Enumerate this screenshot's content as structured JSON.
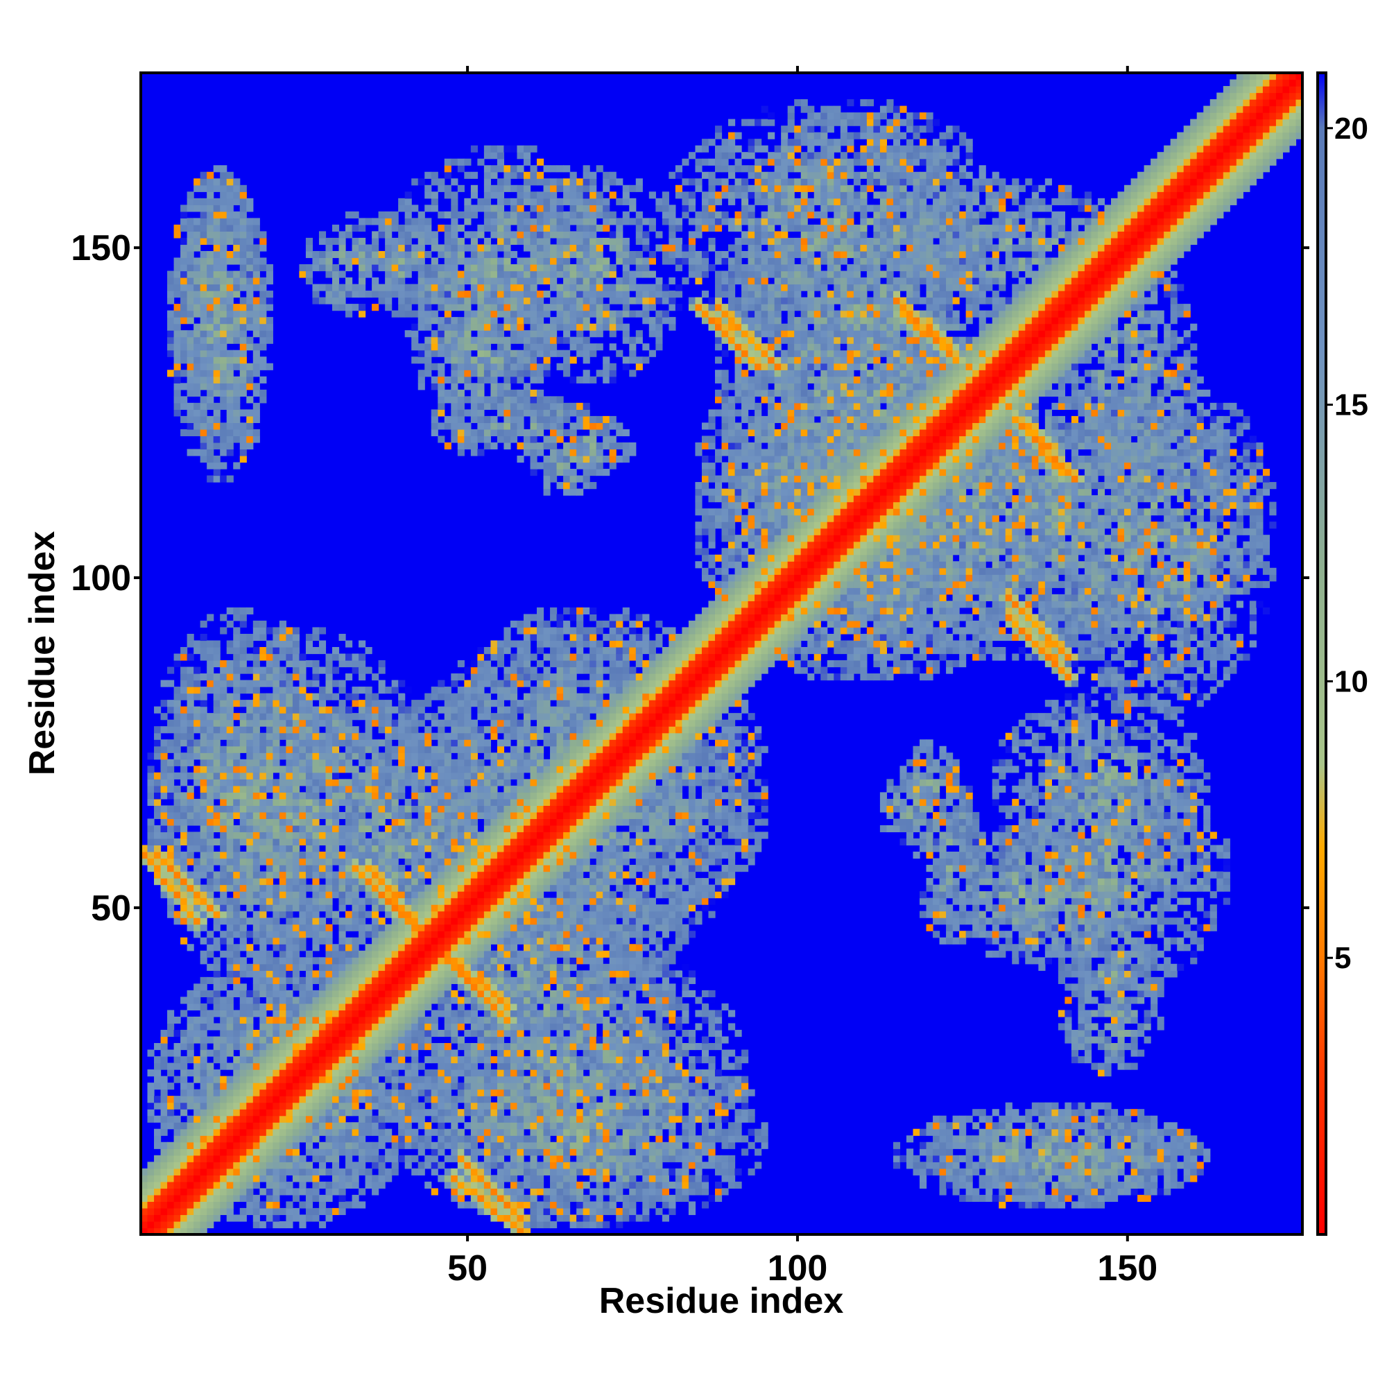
{
  "chart_data": {
    "type": "heatmap",
    "title": "",
    "xlabel": "Residue index",
    "ylabel": "Residue index",
    "n_residues": 176,
    "xlim": [
      1,
      176
    ],
    "ylim": [
      1,
      176
    ],
    "x_ticks": [
      50,
      100,
      150
    ],
    "y_ticks": [
      50,
      100,
      150
    ],
    "colorbar": {
      "ticks": [
        5,
        10,
        15,
        20
      ],
      "range": [
        0,
        21
      ],
      "stops": [
        {
          "value": 0,
          "color": "#ff0000"
        },
        {
          "value": 3,
          "color": "#ff3a00"
        },
        {
          "value": 5,
          "color": "#ff7a00"
        },
        {
          "value": 7,
          "color": "#ffaa00"
        },
        {
          "value": 8.5,
          "color": "#a9c58a"
        },
        {
          "value": 12,
          "color": "#8fb08f"
        },
        {
          "value": 16,
          "color": "#6f92c0"
        },
        {
          "value": 20,
          "color": "#5a7ab8"
        },
        {
          "value": 21,
          "color": "#0000f5"
        }
      ]
    },
    "cutoff_color": "#0000f5",
    "diagonal": {
      "value": 0,
      "band_width": 3,
      "shoulder_width": 9
    },
    "contact_bands": [
      {
        "a": [
          3,
          12
        ],
        "b": [
          58,
          49
        ],
        "value": 5
      },
      {
        "a": [
          33,
          44
        ],
        "b": [
          56,
          45
        ],
        "value": 5
      },
      {
        "a": [
          47,
          56
        ],
        "b": [
          43,
          35
        ],
        "value": 5
      },
      {
        "a": [
          48,
          58
        ],
        "b": [
          9,
          1
        ],
        "value": 5
      },
      {
        "a": [
          85,
          94
        ],
        "b": [
          141,
          132
        ],
        "value": 5
      },
      {
        "a": [
          116,
          124
        ],
        "b": [
          140,
          133
        ],
        "value": 5
      },
      {
        "a": [
          132,
          141
        ],
        "b": [
          97,
          88
        ],
        "value": 5
      },
      {
        "a": [
          135,
          142
        ],
        "b": [
          123,
          115
        ],
        "value": 5
      }
    ],
    "contact_regions": [
      {
        "x": [
          2,
          42
        ],
        "y": [
          2,
          42
        ]
      },
      {
        "x": [
          2,
          30
        ],
        "y": [
          40,
          95
        ]
      },
      {
        "x": [
          20,
          55
        ],
        "y": [
          40,
          80
        ]
      },
      {
        "x": [
          40,
          92
        ],
        "y": [
          2,
          45
        ]
      },
      {
        "x": [
          45,
          92
        ],
        "y": [
          40,
          95
        ]
      },
      {
        "x": [
          5,
          20
        ],
        "y": [
          118,
          162
        ]
      },
      {
        "x": [
          25,
          40
        ],
        "y": [
          140,
          155
        ]
      },
      {
        "x": [
          38,
          72
        ],
        "y": [
          130,
          165
        ]
      },
      {
        "x": [
          45,
          70
        ],
        "y": [
          118,
          128
        ]
      },
      {
        "x": [
          60,
          75
        ],
        "y": [
          115,
          125
        ]
      },
      {
        "x": [
          80,
          132
        ],
        "y": [
          135,
          172
        ]
      },
      {
        "x": [
          115,
          150
        ],
        "y": [
          140,
          160
        ]
      },
      {
        "x": [
          85,
          140
        ],
        "y": [
          85,
          135
        ]
      },
      {
        "x": [
          95,
          170
        ],
        "y": [
          88,
          130
        ]
      },
      {
        "x": [
          130,
          162
        ],
        "y": [
          56,
          82
        ]
      },
      {
        "x": [
          112,
          122
        ],
        "y": [
          60,
          70
        ]
      },
      {
        "x": [
          120,
          150
        ],
        "y": [
          42,
          62
        ]
      },
      {
        "x": [
          140,
          157
        ],
        "y": [
          35,
          45
        ]
      },
      {
        "x": [
          115,
          161
        ],
        "y": [
          5,
          20
        ]
      }
    ]
  }
}
